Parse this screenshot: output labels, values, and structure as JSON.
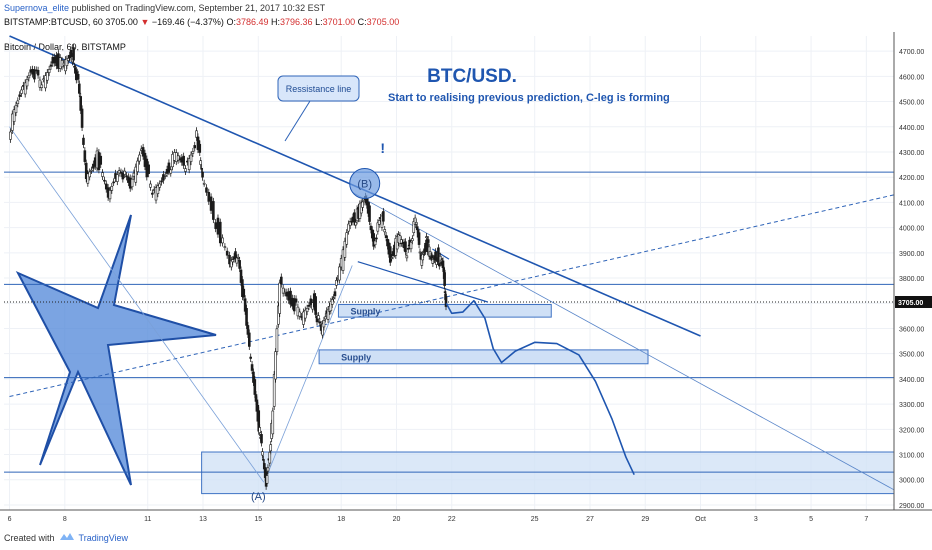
{
  "header": {
    "publisher": "Supernova_elite",
    "published_text": "published on TradingView.com, September 21, 2017 10:32 EST",
    "symbol_interval": "BITSTAMP:BTCUSD, 60",
    "last": "3705.00",
    "change_arrow": "▼",
    "change": "−169.46 (−4.37%)",
    "o_label": "O:",
    "o_value": "3786.49",
    "h_label": "H:",
    "h_value": "3796.36",
    "l_label": "L:",
    "l_value": "3701.00",
    "c_label": "C:",
    "c_value": "3705.00"
  },
  "series_label": "Bitcoin / Dollar, 60, BITSTAMP",
  "footer": {
    "created_with": "Created with",
    "brand": "TradingView"
  },
  "colors": {
    "accent": "#1565c0",
    "zone_fill": "#cfe0f6",
    "zone_stroke": "#3f73c4",
    "price_tag": "#111111",
    "down": "#d32f2f"
  },
  "chart_data": {
    "type": "candlestick",
    "title": "BTC/USD.",
    "subtitle": "Start to realising previous prediction, C-leg is forming",
    "ylim": [
      2880,
      4760
    ],
    "y_ticks": [
      2900,
      3000,
      3100,
      3200,
      3300,
      3400,
      3500,
      3600,
      3700,
      3800,
      3900,
      4000,
      4100,
      4200,
      4300,
      4400,
      4500,
      4600,
      4700
    ],
    "x_ticks": [
      {
        "label": "6",
        "day": 6
      },
      {
        "label": "8",
        "day": 8
      },
      {
        "label": "11",
        "day": 11
      },
      {
        "label": "13",
        "day": 13
      },
      {
        "label": "15",
        "day": 15
      },
      {
        "label": "18",
        "day": 18
      },
      {
        "label": "20",
        "day": 20
      },
      {
        "label": "22",
        "day": 22
      },
      {
        "label": "25",
        "day": 25
      },
      {
        "label": "27",
        "day": 27
      },
      {
        "label": "29",
        "day": 29
      },
      {
        "label": "Oct",
        "day": 31
      },
      {
        "label": "3",
        "day": 33
      },
      {
        "label": "5",
        "day": 35
      },
      {
        "label": "7",
        "day": 37
      }
    ],
    "last_price_label": "3705.00",
    "last_price": 3705,
    "price_path": [
      [
        6.0,
        4380
      ],
      [
        6.4,
        4520
      ],
      [
        6.8,
        4640
      ],
      [
        7.2,
        4560
      ],
      [
        7.6,
        4670
      ],
      [
        8.0,
        4640
      ],
      [
        8.3,
        4690
      ],
      [
        8.5,
        4570
      ],
      [
        8.8,
        4200
      ],
      [
        9.2,
        4280
      ],
      [
        9.6,
        4120
      ],
      [
        10.0,
        4250
      ],
      [
        10.4,
        4150
      ],
      [
        10.8,
        4330
      ],
      [
        11.2,
        4120
      ],
      [
        11.6,
        4200
      ],
      [
        12.0,
        4280
      ],
      [
        12.4,
        4240
      ],
      [
        12.8,
        4360
      ],
      [
        13.0,
        4200
      ],
      [
        13.5,
        4020
      ],
      [
        14.0,
        3850
      ],
      [
        14.3,
        3900
      ],
      [
        14.6,
        3600
      ],
      [
        14.9,
        3350
      ],
      [
        15.1,
        3150
      ],
      [
        15.3,
        2980
      ],
      [
        15.5,
        3200
      ],
      [
        15.8,
        3780
      ],
      [
        16.2,
        3720
      ],
      [
        16.6,
        3640
      ],
      [
        17.0,
        3720
      ],
      [
        17.3,
        3580
      ],
      [
        17.6,
        3700
      ],
      [
        17.9,
        3780
      ],
      [
        18.3,
        4020
      ],
      [
        18.6,
        4050
      ],
      [
        18.9,
        4110
      ],
      [
        19.2,
        3950
      ],
      [
        19.5,
        4040
      ],
      [
        19.8,
        3880
      ],
      [
        20.1,
        3960
      ],
      [
        20.4,
        3900
      ],
      [
        20.7,
        4020
      ],
      [
        20.9,
        3880
      ],
      [
        21.1,
        3940
      ],
      [
        21.3,
        3870
      ],
      [
        21.5,
        3890
      ],
      [
        21.7,
        3835
      ],
      [
        21.8,
        3705
      ]
    ],
    "horizontal_levels": [
      4220,
      3775,
      3705,
      3405,
      3030
    ],
    "supply_zones": [
      {
        "label": "Supply",
        "from_day": 17.9,
        "to_day": 25.6,
        "high": 3695,
        "low": 3645
      },
      {
        "label": "Supply",
        "from_day": 17.2,
        "to_day": 29.1,
        "high": 3515,
        "low": 3460
      }
    ],
    "demand_zone": {
      "from_day": 12.95,
      "to_day": 38.0,
      "high": 3110,
      "low": 2945
    },
    "resistance_line": {
      "from": [
        6.0,
        4760
      ],
      "to": [
        31.0,
        3570
      ]
    },
    "thin_trend_line": {
      "from": [
        18.4,
        4140
      ],
      "to": [
        38.0,
        2960
      ]
    },
    "left_diagonal": {
      "from": [
        6.0,
        4400
      ],
      "to": [
        15.2,
        2990
      ]
    },
    "dashed_trend_line": {
      "from": [
        6.0,
        3330
      ],
      "to": [
        38.0,
        4130
      ]
    },
    "wedge": {
      "upper": [
        [
          21.3,
          3915
        ],
        [
          21.9,
          3875
        ]
      ],
      "lower": [
        [
          18.6,
          3865
        ],
        [
          23.3,
          3705
        ]
      ]
    },
    "projection_path": [
      [
        21.8,
        3700
      ],
      [
        22.0,
        3660
      ],
      [
        22.4,
        3665
      ],
      [
        22.8,
        3710
      ],
      [
        23.2,
        3640
      ],
      [
        23.5,
        3520
      ],
      [
        23.8,
        3465
      ],
      [
        24.3,
        3510
      ],
      [
        25.0,
        3545
      ],
      [
        25.8,
        3540
      ],
      [
        26.6,
        3495
      ],
      [
        27.2,
        3390
      ],
      [
        27.8,
        3240
      ],
      [
        28.3,
        3090
      ],
      [
        28.6,
        3020
      ]
    ],
    "wave_labels": [
      {
        "label": "(B)",
        "day": 18.85,
        "price": 4175
      },
      {
        "label": "(A)",
        "day": 15.0,
        "price": 2935
      }
    ],
    "annotations": [
      {
        "label": "Ressistance line",
        "kind": "callout"
      },
      {
        "label": "!",
        "kind": "mark",
        "day": 19.5,
        "price": 4295
      }
    ]
  }
}
